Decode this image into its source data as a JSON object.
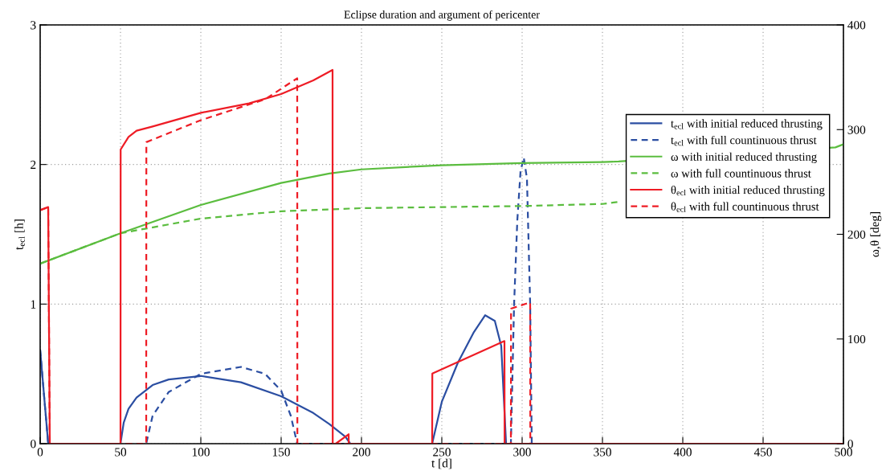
{
  "chart_data": {
    "type": "line",
    "title": "Eclipse duration and argument of pericenter",
    "xlabel": "t [d]",
    "ylabel": "t$_{ecl}$ [h]",
    "y2label": "ω,θ [deg]",
    "xlim": [
      0,
      500
    ],
    "xticks": [
      0,
      50,
      100,
      150,
      200,
      250,
      300,
      350,
      400,
      450,
      500
    ],
    "ylim": [
      0,
      3
    ],
    "yticks": [
      0,
      1,
      2,
      3
    ],
    "y2lim": [
      0,
      400
    ],
    "y2ticks": [
      0,
      100,
      200,
      300,
      400
    ],
    "grid": true,
    "legend": "top right",
    "marker": "none",
    "series": [
      {
        "name": "t$_{ecl}$ with initial reduced thrusting",
        "color": "#2b4ea2",
        "line_style": "solid",
        "x": [
          0,
          5,
          50,
          52,
          55,
          60,
          70,
          80,
          100,
          125,
          150,
          170,
          180,
          190,
          193,
          244,
          250,
          260,
          270,
          277,
          283,
          287,
          290,
          500
        ],
        "values": [
          0.67,
          0,
          0,
          0.15,
          0.25,
          0.33,
          0.42,
          0.46,
          0.485,
          0.44,
          0.34,
          0.22,
          0.14,
          0.05,
          0,
          0,
          0.3,
          0.58,
          0.8,
          0.92,
          0.88,
          0.7,
          0,
          0
        ]
      },
      {
        "name": "t$_{ecl}$ with full countinuous thrust",
        "color": "#2b4ea2",
        "line_style": "dashed",
        "x": [
          0,
          5,
          66,
          70,
          80,
          100,
          125,
          140,
          150,
          156,
          160,
          293,
          295,
          297,
          299,
          301,
          303,
          305,
          306,
          500
        ],
        "values": [
          0.67,
          0,
          0,
          0.2,
          0.37,
          0.5,
          0.55,
          0.5,
          0.38,
          0.2,
          0,
          0,
          1.0,
          1.6,
          1.95,
          2.05,
          1.9,
          1.0,
          0,
          0
        ]
      },
      {
        "name": "ω with initial reduced thrusting",
        "color": "#5bbd3f",
        "line_style": "solid",
        "axis": "y2",
        "x": [
          0,
          50,
          100,
          150,
          180,
          200,
          250,
          300,
          350,
          360,
          495,
          500
        ],
        "values": [
          172,
          201,
          228,
          249,
          258,
          262,
          266,
          268,
          269,
          269.5,
          283,
          286
        ]
      },
      {
        "name": "ω with full countinuous thrust",
        "color": "#5bbd3f",
        "line_style": "dashed",
        "axis": "y2",
        "x": [
          0,
          50,
          100,
          150,
          200,
          250,
          300,
          350,
          360
        ],
        "values": [
          172,
          201,
          215,
          222,
          225,
          226,
          227,
          229,
          231
        ]
      },
      {
        "name": "θ$_{ecl}$ with initial reduced thrusting",
        "color": "#ee1c25",
        "line_style": "solid",
        "axis": "y2",
        "x": [
          0,
          5,
          6,
          50,
          50.1,
          55,
          60,
          70,
          100,
          130,
          150,
          170,
          182,
          182.1,
          184,
          192,
          192.1,
          244,
          244.1,
          289,
          289.1,
          500
        ],
        "values": [
          223,
          226,
          0,
          0,
          281,
          293,
          299,
          303,
          316,
          325,
          334,
          347,
          357,
          0,
          0,
          9,
          0,
          0,
          67,
          98,
          0,
          0
        ]
      },
      {
        "name": "θ$_{ecl}$ with full countinuous thrust",
        "color": "#ee1c25",
        "line_style": "dashed",
        "axis": "y2",
        "x": [
          0,
          5,
          6,
          66,
          66.1,
          100,
          140,
          160,
          160.1,
          293,
          293.1,
          305,
          305.1,
          500
        ],
        "values": [
          223,
          226,
          0,
          0,
          288,
          309,
          329,
          349,
          0,
          0,
          129,
          135,
          0,
          0
        ]
      }
    ]
  }
}
